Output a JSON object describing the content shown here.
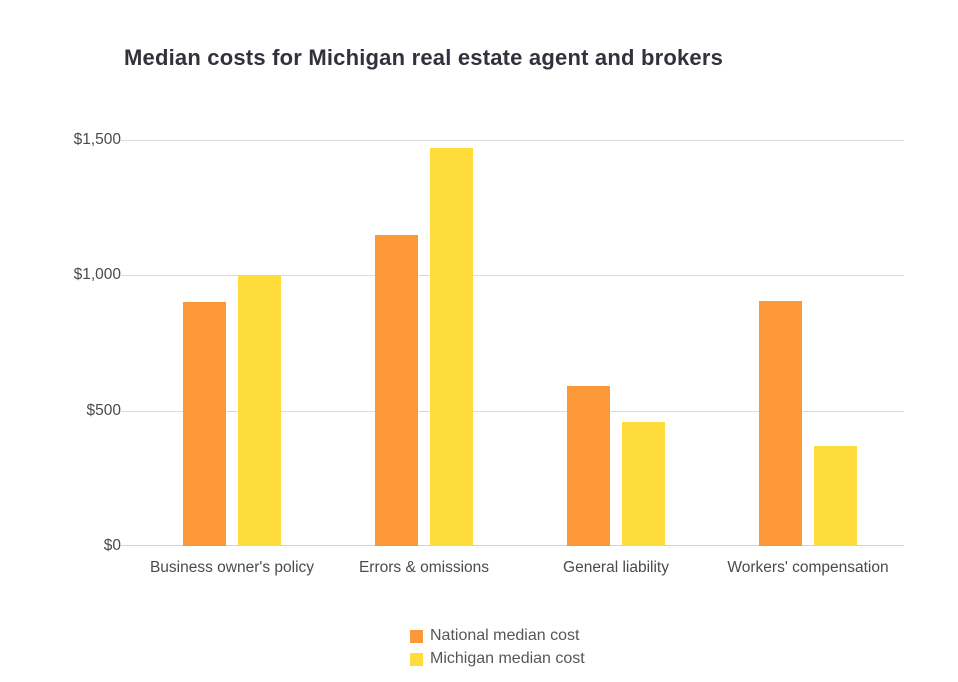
{
  "title": "Median costs for Michigan real estate agent and brokers",
  "chart_data": {
    "type": "bar",
    "title": "Median costs for Michigan real estate agent and brokers",
    "categories": [
      "Business owner's policy",
      "Errors & omissions",
      "General liability",
      "Workers' compensation"
    ],
    "series": [
      {
        "name": "National median cost",
        "color": "#FD9838",
        "values": [
          900,
          1150,
          590,
          905
        ]
      },
      {
        "name": "Michigan median cost",
        "color": "#FEDC3C",
        "values": [
          1000,
          1470,
          460,
          370
        ]
      }
    ],
    "y_ticks": [
      {
        "label": "$1,500",
        "value": 1500
      },
      {
        "label": "$1,000",
        "value": 1000
      },
      {
        "label": "$500",
        "value": 500
      },
      {
        "label": "$0",
        "value": 0
      }
    ],
    "ylim": [
      0,
      1500
    ],
    "grid": true,
    "legend_position": "bottom",
    "xlabel": "",
    "ylabel": ""
  },
  "colors": {
    "gridline": "#DBDBDB",
    "axis_line": "#D2D2D2",
    "title_text": "#32323C",
    "tick_text": "#4B4B4D",
    "legend_text": "#55565A",
    "background": "#FFFFFF"
  }
}
